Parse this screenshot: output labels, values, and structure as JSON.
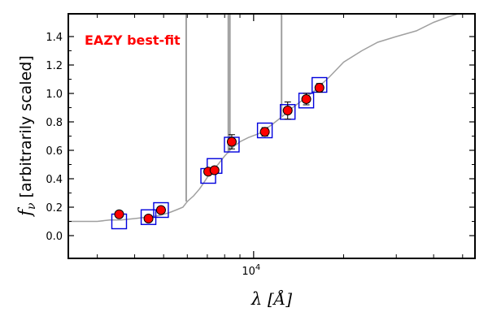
{
  "chart_data": {
    "type": "scatter",
    "annotation": {
      "text": "EAZY best-fit",
      "color": "#ff0000"
    },
    "xlabel": {
      "symbol": "λ",
      "unit": "[Å]"
    },
    "ylabel": {
      "symbol": "f",
      "subscript": "ν",
      "text": "[arbitrarily scaled]"
    },
    "x_scale": "log",
    "xlim": [
      2400,
      55000
    ],
    "ylim": [
      -0.16,
      1.56
    ],
    "y_ticks": [
      "0.0",
      "0.2",
      "0.4",
      "0.6",
      "0.8",
      "1.0",
      "1.2",
      "1.4"
    ],
    "x_tick_labels": [
      {
        "value": 10000,
        "base": "10",
        "exp": "4"
      }
    ],
    "x_minor_ticks": [
      3000,
      4000,
      5000,
      6000,
      7000,
      8000,
      9000,
      20000,
      30000,
      40000,
      50000
    ],
    "grid": false,
    "colors": {
      "model": "#a0a0a0",
      "observed": "#ff0000",
      "model_box": "#0000dd",
      "errorbar": "#000000"
    },
    "observed": [
      {
        "x": 3550,
        "y": 0.15,
        "err": 0.02
      },
      {
        "x": 4450,
        "y": 0.12,
        "err": 0.02
      },
      {
        "x": 4900,
        "y": 0.18,
        "err": 0.02
      },
      {
        "x": 7050,
        "y": 0.45,
        "err": 0.02
      },
      {
        "x": 7400,
        "y": 0.46,
        "err": 0.02
      },
      {
        "x": 8450,
        "y": 0.66,
        "err": 0.05
      },
      {
        "x": 10900,
        "y": 0.73,
        "err": 0.03
      },
      {
        "x": 13000,
        "y": 0.88,
        "err": 0.06
      },
      {
        "x": 15000,
        "y": 0.96,
        "err": 0.04
      },
      {
        "x": 16600,
        "y": 1.04,
        "err": 0.03
      }
    ],
    "model_photometry": [
      {
        "x": 3550,
        "y": 0.1
      },
      {
        "x": 4450,
        "y": 0.13
      },
      {
        "x": 4900,
        "y": 0.18
      },
      {
        "x": 7050,
        "y": 0.42
      },
      {
        "x": 7400,
        "y": 0.49
      },
      {
        "x": 8450,
        "y": 0.64
      },
      {
        "x": 10900,
        "y": 0.74
      },
      {
        "x": 13000,
        "y": 0.87
      },
      {
        "x": 15000,
        "y": 0.95
      },
      {
        "x": 16600,
        "y": 1.06
      }
    ],
    "model_spectrum": [
      [
        2400,
        0.1
      ],
      [
        3000,
        0.1
      ],
      [
        3300,
        0.11
      ],
      [
        3600,
        0.11
      ],
      [
        4000,
        0.12
      ],
      [
        4400,
        0.13
      ],
      [
        4800,
        0.14
      ],
      [
        5200,
        0.16
      ],
      [
        5500,
        0.18
      ],
      [
        5800,
        0.2
      ],
      [
        6000,
        0.24
      ],
      [
        6300,
        0.28
      ],
      [
        6600,
        0.33
      ],
      [
        6900,
        0.39
      ],
      [
        7200,
        0.45
      ],
      [
        7600,
        0.5
      ],
      [
        8000,
        0.56
      ],
      [
        8500,
        0.62
      ],
      [
        9000,
        0.66
      ],
      [
        9600,
        0.69
      ],
      [
        10500,
        0.72
      ],
      [
        11500,
        0.78
      ],
      [
        12500,
        0.84
      ],
      [
        13500,
        0.9
      ],
      [
        14500,
        0.95
      ],
      [
        16000,
        1.02
      ],
      [
        18000,
        1.12
      ],
      [
        20000,
        1.22
      ],
      [
        23000,
        1.3
      ],
      [
        26000,
        1.36
      ],
      [
        30000,
        1.4
      ],
      [
        35000,
        1.44
      ],
      [
        40000,
        1.5
      ],
      [
        45000,
        1.54
      ],
      [
        50000,
        1.57
      ],
      [
        55000,
        1.6
      ]
    ],
    "emission_lines": [
      {
        "x": 5950,
        "from": 0.24,
        "to": 1.6
      },
      {
        "x": 8230,
        "from": 0.58,
        "to": 1.6
      },
      {
        "x": 8330,
        "from": 0.6,
        "to": 1.6
      },
      {
        "x": 12400,
        "from": 0.84,
        "to": 1.6
      }
    ]
  }
}
